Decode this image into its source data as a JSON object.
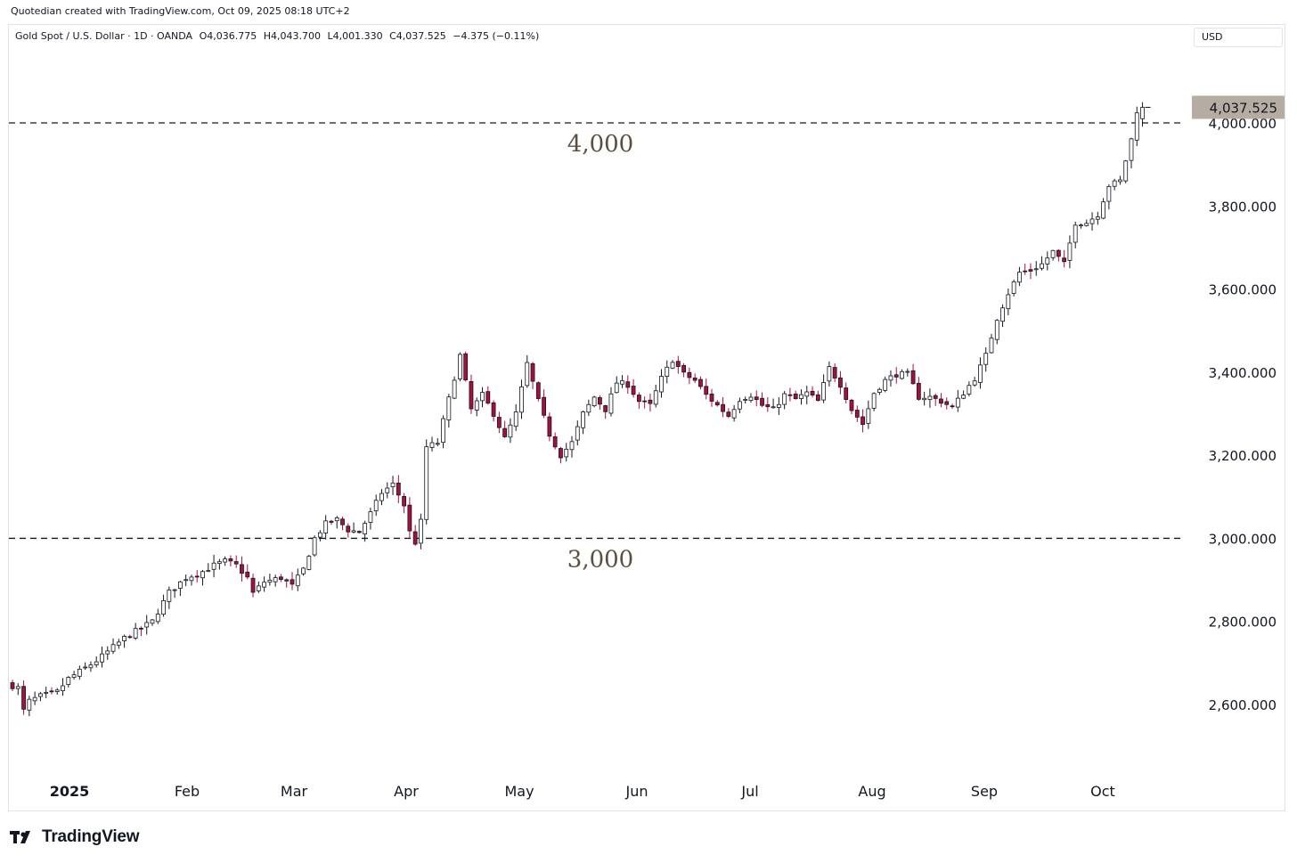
{
  "credit": "Quotedian created with TradingView.com, Oct 09, 2025 08:18 UTC+2",
  "legend": {
    "symbol": "Gold Spot / U.S. Dollar · 1D · OANDA",
    "open": "O4,036.775",
    "high": "H4,043.700",
    "low": "L4,001.330",
    "close": "C4,037.525",
    "change": "−4.375 (−0.11%)"
  },
  "currency": "USD",
  "brand": "TradingView",
  "colors": {
    "up_body": "#ffffff",
    "up_border": "#131722",
    "down_body": "#a8103b",
    "down_border": "#131722",
    "wick_up": "#131722",
    "wick_down": "#a8103b",
    "price_tag": "#b5aca2",
    "annotation": "#5c4f40"
  },
  "chart_data": {
    "type": "candlestick",
    "y_range": [
      2450,
      4180
    ],
    "y_ticks": [
      "2,600.000",
      "2,800.000",
      "3,000.000",
      "3,200.000",
      "3,400.000",
      "3,600.000",
      "3,800.000",
      "4,000.000"
    ],
    "y_tick_values": [
      2600,
      2800,
      3000,
      3200,
      3400,
      3600,
      3800,
      4000
    ],
    "x_labels": [
      "2025",
      "Feb",
      "Mar",
      "Apr",
      "May",
      "Jun",
      "Jul",
      "Aug",
      "Sep",
      "Oct"
    ],
    "last_price": "4,037.525",
    "last_price_value": 4037.525,
    "horizontal_lines": [
      {
        "value": 4000,
        "label": "4,000"
      },
      {
        "value": 3000,
        "label": "3,000"
      }
    ],
    "close_path": [
      [
        0,
        2645
      ],
      [
        1,
        2640
      ],
      [
        2,
        2585
      ],
      [
        3,
        2608
      ],
      [
        5,
        2620
      ],
      [
        8,
        2630
      ],
      [
        10,
        2662
      ],
      [
        15,
        2705
      ],
      [
        20,
        2760
      ],
      [
        25,
        2800
      ],
      [
        28,
        2870
      ],
      [
        31,
        2905
      ],
      [
        34,
        2920
      ],
      [
        36,
        2935
      ],
      [
        38,
        2945
      ],
      [
        40,
        2935
      ],
      [
        42,
        2905
      ],
      [
        43,
        2868
      ],
      [
        45,
        2895
      ],
      [
        48,
        2905
      ],
      [
        50,
        2885
      ],
      [
        52,
        2925
      ],
      [
        54,
        3000
      ],
      [
        56,
        3035
      ],
      [
        58,
        3045
      ],
      [
        60,
        3020
      ],
      [
        62,
        3015
      ],
      [
        64,
        3060
      ],
      [
        66,
        3110
      ],
      [
        68,
        3130
      ],
      [
        70,
        3080
      ],
      [
        71,
        3015
      ],
      [
        72,
        2990
      ],
      [
        73,
        3040
      ],
      [
        74,
        3220
      ],
      [
        76,
        3230
      ],
      [
        78,
        3335
      ],
      [
        80,
        3440
      ],
      [
        82,
        3310
      ],
      [
        84,
        3345
      ],
      [
        86,
        3300
      ],
      [
        88,
        3240
      ],
      [
        90,
        3300
      ],
      [
        92,
        3420
      ],
      [
        94,
        3330
      ],
      [
        96,
        3250
      ],
      [
        98,
        3200
      ],
      [
        100,
        3230
      ],
      [
        102,
        3300
      ],
      [
        104,
        3340
      ],
      [
        106,
        3310
      ],
      [
        108,
        3375
      ],
      [
        110,
        3370
      ],
      [
        112,
        3330
      ],
      [
        114,
        3320
      ],
      [
        116,
        3385
      ],
      [
        118,
        3430
      ],
      [
        120,
        3395
      ],
      [
        122,
        3380
      ],
      [
        124,
        3345
      ],
      [
        126,
        3320
      ],
      [
        128,
        3295
      ],
      [
        130,
        3335
      ],
      [
        132,
        3345
      ],
      [
        134,
        3320
      ],
      [
        136,
        3310
      ],
      [
        138,
        3345
      ],
      [
        140,
        3335
      ],
      [
        142,
        3350
      ],
      [
        144,
        3330
      ],
      [
        146,
        3410
      ],
      [
        148,
        3370
      ],
      [
        150,
        3310
      ],
      [
        152,
        3275
      ],
      [
        154,
        3350
      ],
      [
        156,
        3380
      ],
      [
        158,
        3395
      ],
      [
        160,
        3395
      ],
      [
        162,
        3340
      ],
      [
        164,
        3340
      ],
      [
        166,
        3330
      ],
      [
        168,
        3315
      ],
      [
        170,
        3350
      ],
      [
        172,
        3385
      ],
      [
        174,
        3440
      ],
      [
        176,
        3530
      ],
      [
        178,
        3590
      ],
      [
        180,
        3640
      ],
      [
        182,
        3645
      ],
      [
        184,
        3660
      ],
      [
        186,
        3690
      ],
      [
        188,
        3660
      ],
      [
        190,
        3760
      ],
      [
        192,
        3760
      ],
      [
        194,
        3780
      ],
      [
        196,
        3850
      ],
      [
        198,
        3860
      ],
      [
        200,
        3960
      ],
      [
        201,
        4030
      ],
      [
        202,
        4037.525
      ]
    ]
  }
}
